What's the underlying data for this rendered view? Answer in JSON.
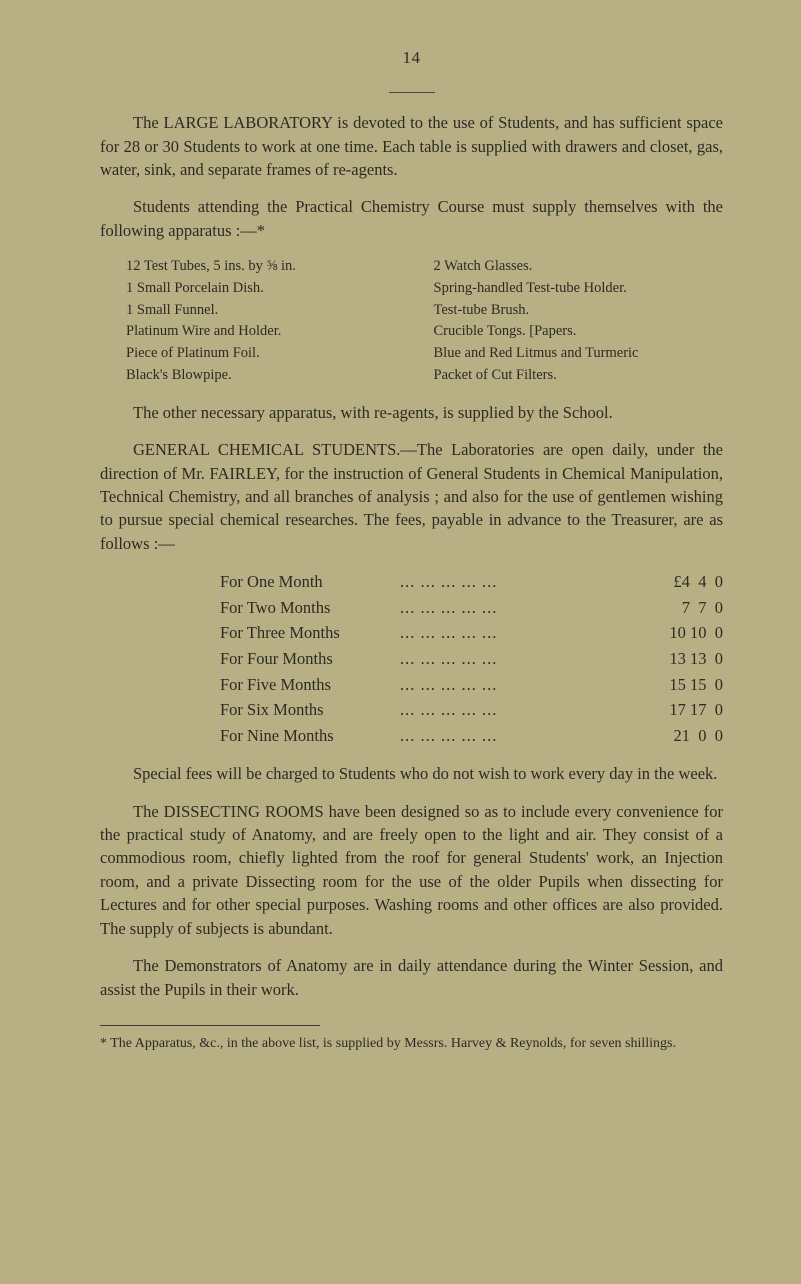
{
  "page_number": "14",
  "para1": "The LARGE LABORATORY is devoted to the use of Students, and has sufficient space for 28 or 30 Students to work at one time. Each table is supplied with drawers and closet, gas, water, sink, and separate frames of re-agents.",
  "para2": "Students attending the Practical Chemistry Course must supply themselves with the following apparatus :—*",
  "apparatus_left": [
    "12 Test Tubes, 5 ins. by ⅝ in.",
    "1 Small Porcelain Dish.",
    "1 Small Funnel.",
    "Platinum Wire and Holder.",
    "Piece of Platinum Foil.",
    "Black's Blowpipe."
  ],
  "apparatus_right": [
    "2 Watch Glasses.",
    "Spring-handled Test-tube Holder.",
    "Test-tube Brush.",
    "Crucible Tongs.                          [Papers.",
    "Blue and Red Litmus and Turmeric",
    "Packet of Cut Filters."
  ],
  "para3": "The other necessary apparatus, with re-agents, is supplied by the School.",
  "para4": "GENERAL CHEMICAL STUDENTS.—The Laboratories are open daily, under the direction of Mr. FAIRLEY, for the instruction of General Students in Chemical Manipulation, Technical Chemistry, and all branches of analysis ; and also for the use of gentlemen wishing to pursue special chemical researches. The fees, payable in advance to the Treasurer, are as follows :—",
  "fees": [
    {
      "label": "For One Month",
      "dots": "...  ...  ...  ...  ...",
      "amt": "£4  4  0"
    },
    {
      "label": "For Two Months",
      "dots": "...  ...  ...  ...  ...",
      "amt": " 7  7  0"
    },
    {
      "label": "For Three Months",
      "dots": "...  ...  ...  ...  ...",
      "amt": "10 10  0"
    },
    {
      "label": "For Four Months",
      "dots": "...  ...  ...  ...  ...",
      "amt": "13 13  0"
    },
    {
      "label": "For Five Months",
      "dots": "...  ...  ...  ...  ...",
      "amt": "15 15  0"
    },
    {
      "label": "For Six Months",
      "dots": "...  ...  ...  ...  ...",
      "amt": "17 17  0"
    },
    {
      "label": "For Nine Months",
      "dots": "...  ...  ...  ...  ...",
      "amt": "21  0  0"
    }
  ],
  "para5": "Special fees will be charged to Students who do not wish to work every day in the week.",
  "para6": "The DISSECTING ROOMS have been designed so as to include every convenience for the practical study of Anatomy, and are freely open to the light and air. They consist of a commodious room, chiefly lighted from the roof for general Students' work, an Injection room, and a private Dissecting room for the use of the older Pupils when dissecting for Lectures and for other special purposes. Washing rooms and other offices are also provided. The supply of subjects is abundant.",
  "para7": "The Demonstrators of Anatomy are in daily attendance during the Winter Session, and assist the Pupils in their work.",
  "footnote": "* The Apparatus, &c., in the above list, is supplied by Messrs. Harvey & Reynolds, for seven shillings."
}
